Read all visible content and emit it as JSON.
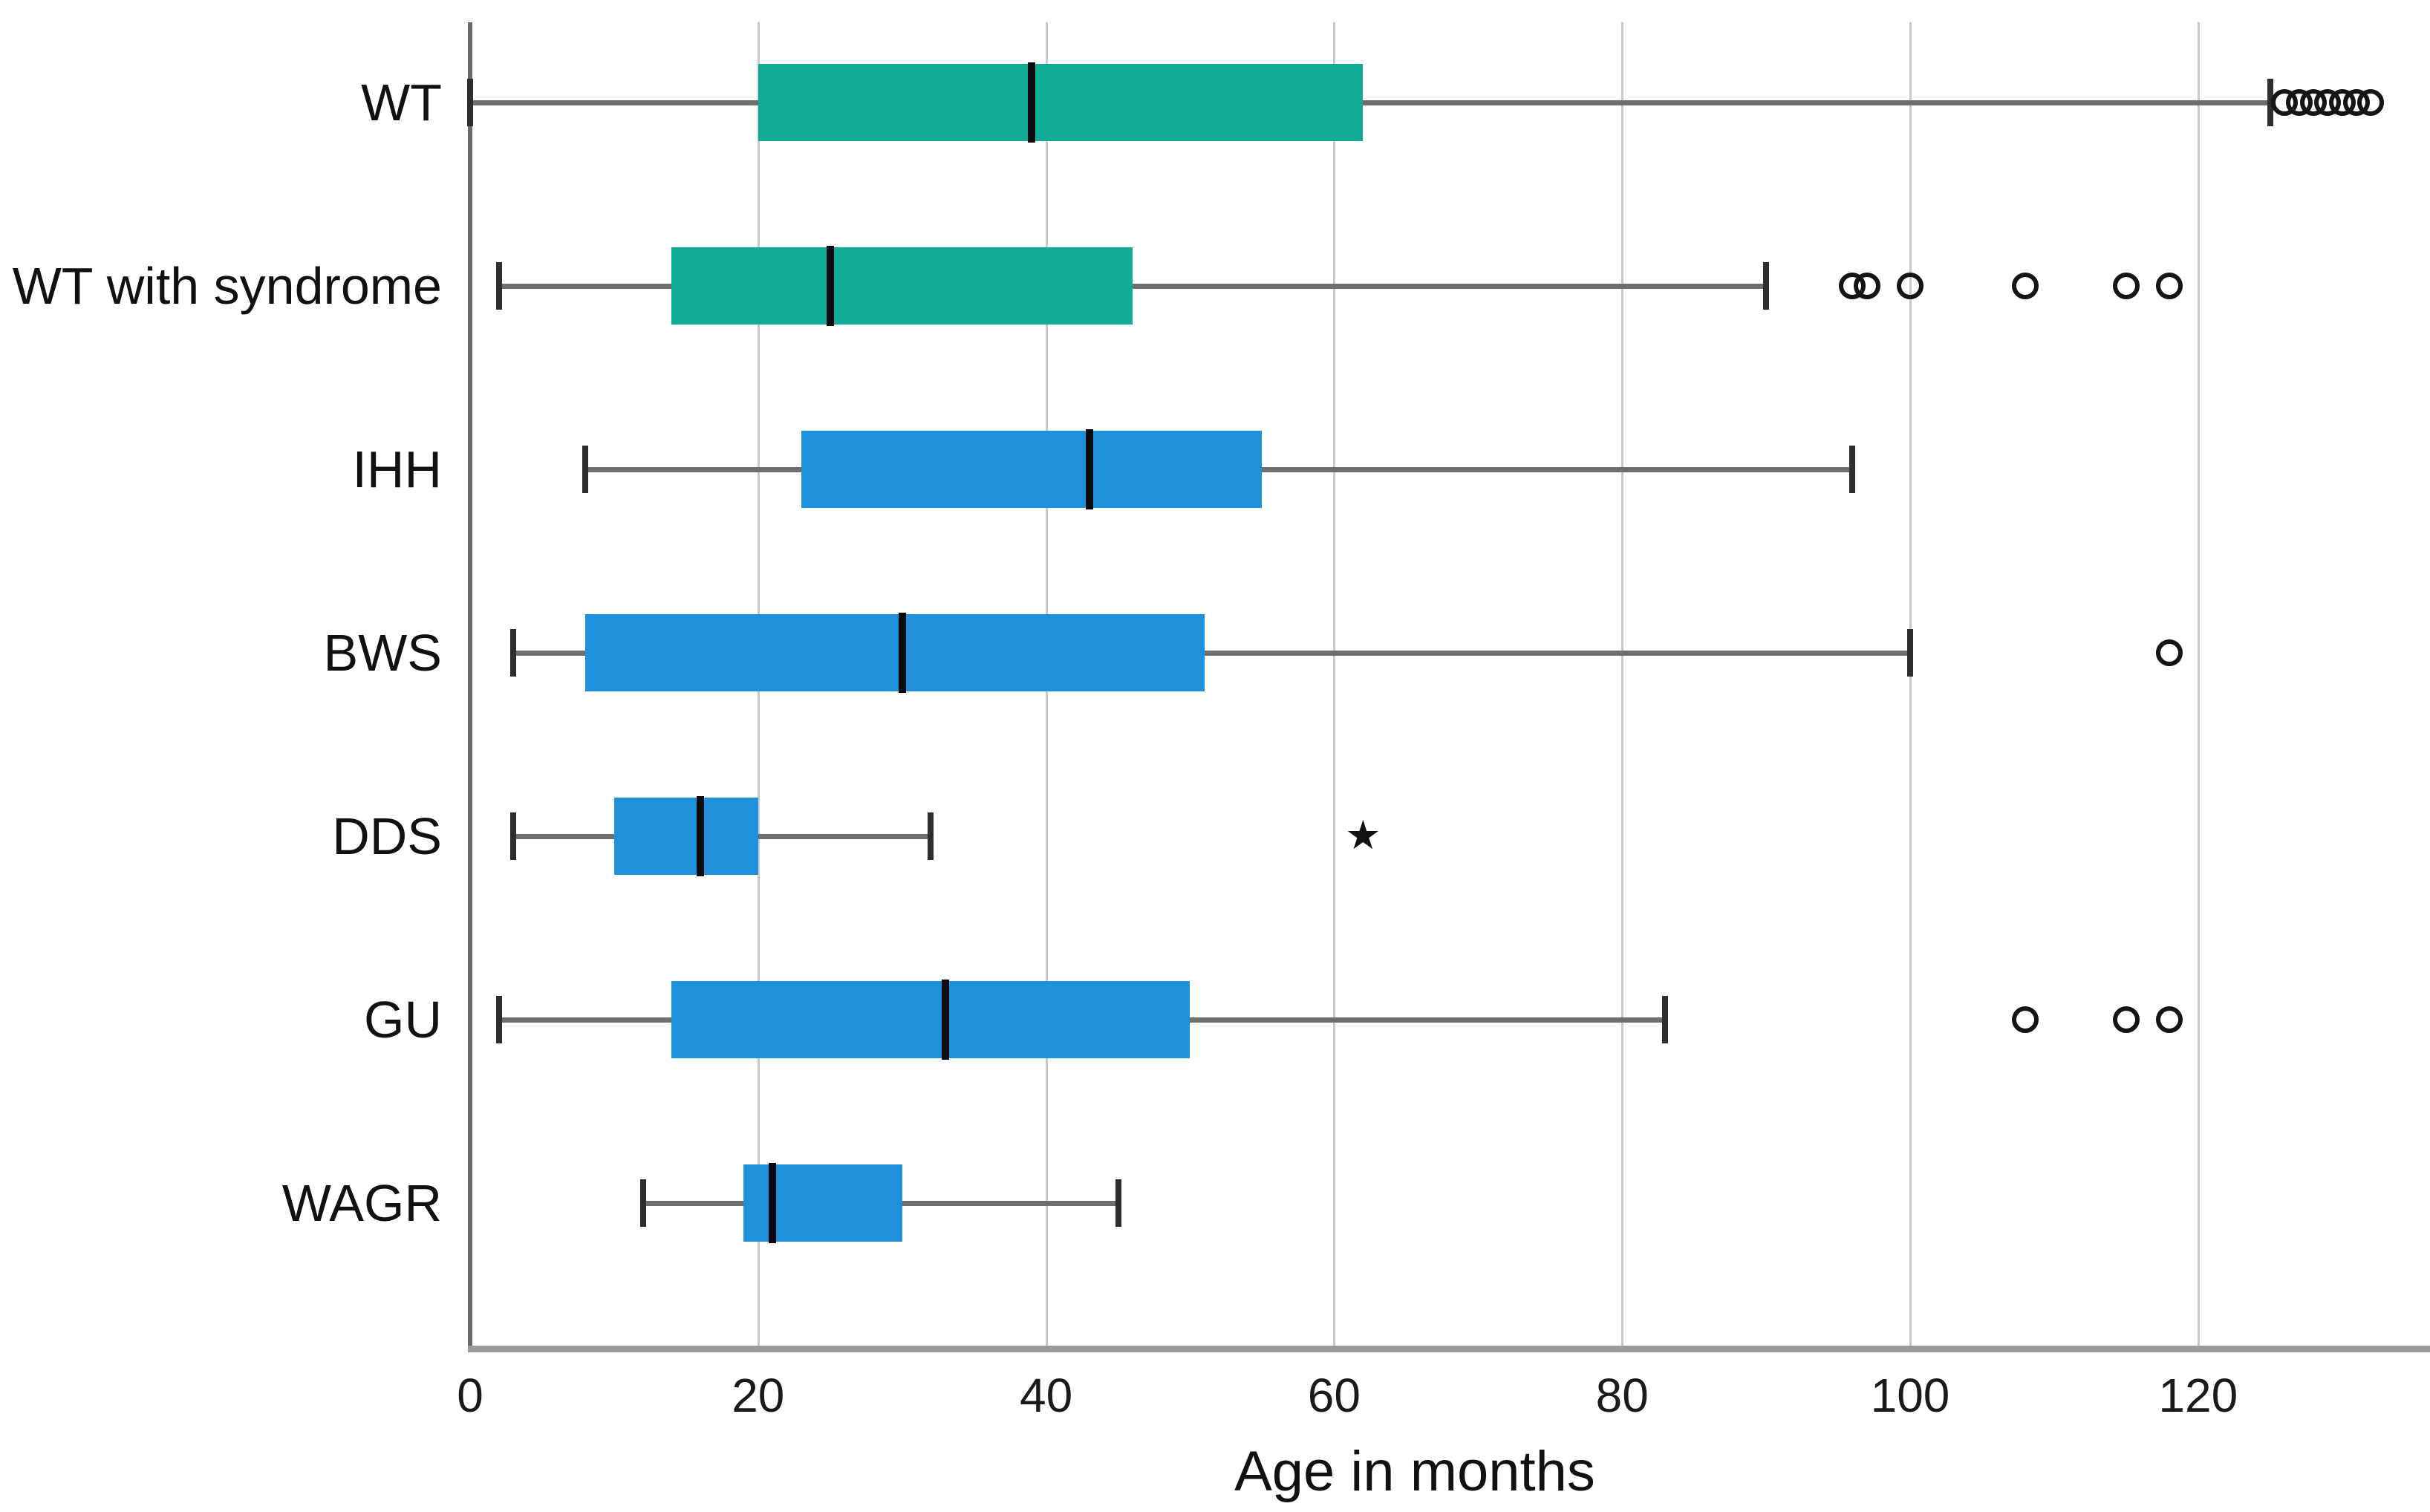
{
  "chart_data": {
    "type": "boxplot",
    "orientation": "horizontal",
    "title": "",
    "xlabel": "Age in months",
    "x_ticks": [
      0,
      20,
      40,
      60,
      80,
      100,
      120
    ],
    "xlim": [
      0,
      136
    ],
    "grid": "vertical-light-gray",
    "legend_position": "none",
    "colors": {
      "teal_box": "#10AC96",
      "blue_box": "#1E90DC",
      "median_line": "#0b0b12",
      "whisker": "#6e6e6e",
      "gridline": "#c9c9c9",
      "outlier_stroke": "#151515"
    },
    "categories": [
      "WT",
      "WT with syndrome",
      "IHH",
      "BWS",
      "DDS",
      "GU",
      "WAGR"
    ],
    "series": [
      {
        "name": "WT",
        "color": "#10AC96",
        "whisker_low": 0,
        "q1": 20,
        "median": 39,
        "q3": 62,
        "whisker_high": 125,
        "outliers": [
          126,
          127,
          128,
          129,
          130,
          131,
          132
        ],
        "extreme_outliers": []
      },
      {
        "name": "WT with syndrome",
        "color": "#10AC96",
        "whisker_low": 2,
        "q1": 14,
        "median": 25,
        "q3": 46,
        "whisker_high": 90,
        "outliers": [
          96,
          97,
          100,
          108,
          115,
          118
        ],
        "extreme_outliers": []
      },
      {
        "name": "IHH",
        "color": "#1E90DC",
        "whisker_low": 8,
        "q1": 23,
        "median": 43,
        "q3": 55,
        "whisker_high": 96,
        "outliers": [],
        "extreme_outliers": []
      },
      {
        "name": "BWS",
        "color": "#1E90DC",
        "whisker_low": 3,
        "q1": 8,
        "median": 30,
        "q3": 51,
        "whisker_high": 100,
        "outliers": [
          118
        ],
        "extreme_outliers": []
      },
      {
        "name": "DDS",
        "color": "#1E90DC",
        "whisker_low": 3,
        "q1": 10,
        "median": 16,
        "q3": 20,
        "whisker_high": 32,
        "outliers": [],
        "extreme_outliers": [
          62
        ]
      },
      {
        "name": "GU",
        "color": "#1E90DC",
        "whisker_low": 2,
        "q1": 14,
        "median": 33,
        "q3": 50,
        "whisker_high": 83,
        "outliers": [
          108,
          115,
          118
        ],
        "extreme_outliers": []
      },
      {
        "name": "WAGR",
        "color": "#1E90DC",
        "whisker_low": 12,
        "q1": 19,
        "median": 21,
        "q3": 30,
        "whisker_high": 45,
        "outliers": [],
        "extreme_outliers": []
      }
    ]
  }
}
